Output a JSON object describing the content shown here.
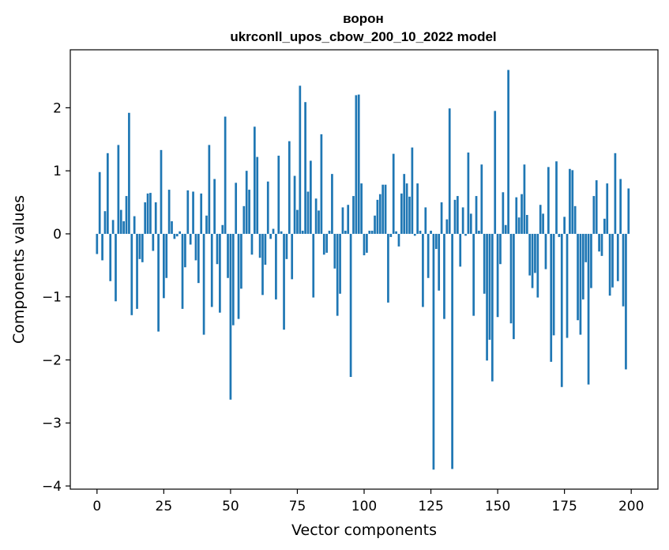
{
  "chart_data": {
    "type": "bar",
    "title": "ворон",
    "subtitle": "ukrconll_upos_cbow_200_10_2022 model",
    "xlabel": "Vector components",
    "ylabel": "Components values",
    "xlim": [
      -10,
      210
    ],
    "ylim": [
      -4.05,
      2.92
    ],
    "x_ticks": [
      0,
      25,
      50,
      75,
      100,
      125,
      150,
      175,
      200
    ],
    "y_ticks": [
      -4,
      -3,
      -2,
      -1,
      0,
      1,
      2
    ],
    "bar_color": "#1f77b4",
    "grid": false,
    "legend": "none",
    "x": [
      0,
      1,
      2,
      3,
      4,
      5,
      6,
      7,
      8,
      9,
      10,
      11,
      12,
      13,
      14,
      15,
      16,
      17,
      18,
      19,
      20,
      21,
      22,
      23,
      24,
      25,
      26,
      27,
      28,
      29,
      30,
      31,
      32,
      33,
      34,
      35,
      36,
      37,
      38,
      39,
      40,
      41,
      42,
      43,
      44,
      45,
      46,
      47,
      48,
      49,
      50,
      51,
      52,
      53,
      54,
      55,
      56,
      57,
      58,
      59,
      60,
      61,
      62,
      63,
      64,
      65,
      66,
      67,
      68,
      69,
      70,
      71,
      72,
      73,
      74,
      75,
      76,
      77,
      78,
      79,
      80,
      81,
      82,
      83,
      84,
      85,
      86,
      87,
      88,
      89,
      90,
      91,
      92,
      93,
      94,
      95,
      96,
      97,
      98,
      99,
      100,
      101,
      102,
      103,
      104,
      105,
      106,
      107,
      108,
      109,
      110,
      111,
      112,
      113,
      114,
      115,
      116,
      117,
      118,
      119,
      120,
      121,
      122,
      123,
      124,
      125,
      126,
      127,
      128,
      129,
      130,
      131,
      132,
      133,
      134,
      135,
      136,
      137,
      138,
      139,
      140,
      141,
      142,
      143,
      144,
      145,
      146,
      147,
      148,
      149,
      150,
      151,
      152,
      153,
      154,
      155,
      156,
      157,
      158,
      159,
      160,
      161,
      162,
      163,
      164,
      165,
      166,
      167,
      168,
      169,
      170,
      171,
      172,
      173,
      174,
      175,
      176,
      177,
      178,
      179,
      180,
      181,
      182,
      183,
      184,
      185,
      186,
      187,
      188,
      189,
      190,
      191,
      192,
      193,
      194,
      195,
      196,
      197,
      198,
      199
    ],
    "values": [
      -0.32,
      0.98,
      -0.42,
      0.36,
      1.28,
      -0.75,
      0.22,
      -1.07,
      1.41,
      0.38,
      0.2,
      0.6,
      1.92,
      -1.29,
      0.28,
      -1.19,
      -0.4,
      -0.45,
      0.5,
      0.64,
      0.65,
      -0.27,
      0.5,
      -1.55,
      1.33,
      -1.02,
      -0.7,
      0.7,
      0.2,
      -0.08,
      -0.04,
      0.04,
      -1.19,
      -0.53,
      0.69,
      -0.17,
      0.67,
      -0.42,
      -0.78,
      0.64,
      -1.6,
      0.29,
      1.41,
      -1.16,
      0.87,
      -0.48,
      -1.25,
      0.14,
      1.86,
      -0.7,
      -2.63,
      -1.45,
      0.81,
      -1.35,
      -0.87,
      0.44,
      1.0,
      0.7,
      -0.33,
      1.7,
      1.22,
      -0.38,
      -0.97,
      -0.49,
      0.83,
      -0.08,
      0.08,
      -1.04,
      1.24,
      0.04,
      -1.52,
      -0.4,
      1.47,
      -0.72,
      0.92,
      0.38,
      2.35,
      0.05,
      2.09,
      0.67,
      1.16,
      -1.01,
      0.56,
      0.37,
      1.58,
      -0.33,
      -0.3,
      0.05,
      0.95,
      -0.55,
      -1.3,
      -0.95,
      0.42,
      0.05,
      0.46,
      -2.27,
      0.6,
      2.2,
      2.21,
      0.8,
      -0.34,
      -0.3,
      0.05,
      0.05,
      0.29,
      0.54,
      0.63,
      0.78,
      0.78,
      -1.09,
      -0.05,
      1.27,
      0.04,
      -0.2,
      0.64,
      0.95,
      0.8,
      0.59,
      1.37,
      -0.03,
      0.8,
      0.05,
      -1.16,
      0.42,
      -0.7,
      0.05,
      -3.74,
      -0.24,
      -0.9,
      0.5,
      -1.35,
      0.23,
      1.99,
      -3.73,
      0.54,
      0.6,
      -0.52,
      0.42,
      -0.03,
      1.29,
      0.32,
      -1.3,
      0.6,
      0.05,
      1.1,
      -0.95,
      -2.01,
      -1.68,
      -2.34,
      1.95,
      -1.32,
      -0.48,
      0.66,
      0.14,
      2.6,
      -1.42,
      -1.67,
      0.58,
      0.26,
      0.63,
      1.1,
      0.3,
      -0.66,
      -0.86,
      -0.62,
      -1.01,
      0.46,
      0.32,
      -0.56,
      1.06,
      -2.03,
      -1.61,
      1.15,
      -0.05,
      -2.43,
      0.27,
      -1.65,
      1.03,
      1.01,
      0.44,
      -1.37,
      -1.6,
      -1.04,
      -0.45,
      -2.39,
      -0.86,
      0.6,
      0.85,
      -0.28,
      -0.35,
      0.24,
      0.8,
      -0.98,
      -0.85,
      1.28,
      -0.75,
      0.87,
      -1.15,
      -2.15,
      0.72
    ]
  }
}
